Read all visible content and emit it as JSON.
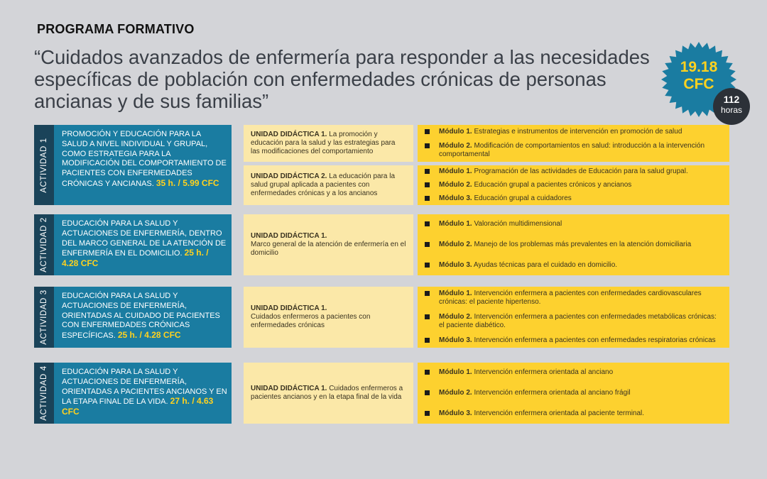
{
  "header": {
    "label": "PROGRAMA FORMATIVO",
    "title": "“Cuidados avanzados de enfermería para responder a las necesidades específicas de población con enfermedades crónicas de personas ancianas y de sus familias”"
  },
  "badge": {
    "cfc_value": "19.18",
    "cfc_label": "CFC",
    "hours_value": "112",
    "hours_label": "horas"
  },
  "colors": {
    "background": "#d3d4d8",
    "activity_blue": "#1a7ca1",
    "activity_tab": "#1a4359",
    "unit_yellow": "#fbe8a8",
    "module_yellow": "#fdd12f",
    "badge_blue": "#1a7ca1",
    "highlight": "#ffd21f"
  },
  "icons": {
    "bullet": "square-bullet-icon",
    "badge": "starburst-badge-icon"
  },
  "activities": [
    {
      "tab": "ACTIVIDAD 1",
      "text": "PROMOCIÓN Y EDUCACIÓN PARA LA SALUD A NIVEL INDIVIDUAL Y GRUPAL, COMO ESTRATEGIA PARA LA MODIFICACIÓN DEL COMPORTAMIENTO DE PACIENTES CON ENFERMEDADES CRÓNICAS Y ANCIANAS.",
      "hours": "35 h. / 5.99 CFC",
      "units": [
        {
          "title": "UNIDAD DIDÁCTICA 1.",
          "desc": "La promoción y educación para la salud y las estrategias para las modificaciones del comportamiento",
          "modules": [
            {
              "label": "Módulo 1.",
              "text": "Estrategias e instrumentos de intervención en promoción de salud"
            },
            {
              "label": "Módulo 2.",
              "text": "Modificación de comportamientos en salud: introducción a la intervención comportamental"
            }
          ]
        },
        {
          "title": "UNIDAD DIDÁCTICA 2.",
          "desc": "La educación para la salud grupal aplicada a pacientes con enfermedades crónicas y a los ancianos",
          "modules": [
            {
              "label": "Módulo 1.",
              "text": "Programación de las actividades de Educación para la salud grupal."
            },
            {
              "label": "Módulo 2.",
              "text": "Educación grupal a pacientes crónicos y ancianos"
            },
            {
              "label": "Módulo 3.",
              "text": "Educación grupal a cuidadores"
            }
          ]
        }
      ]
    },
    {
      "tab": "ACTIVIDAD 2",
      "text": "EDUCACIÓN PARA LA SALUD Y ACTUACIONES DE ENFERMERÍA, DENTRO DEL MARCO GENERAL DE LA ATENCIÓN DE ENFERMERÍA EN EL DOMICILIO.",
      "hours": "25 h. / 4.28 CFC",
      "units": [
        {
          "title": "UNIDAD DIDÁCTICA 1.",
          "desc": "Marco general de la atención de enfermería en el domicilio",
          "modules": [
            {
              "label": "Módulo 1.",
              "text": "Valoración multidimensional"
            },
            {
              "label": "Módulo 2.",
              "text": "Manejo de los problemas más prevalentes en la atención domiciliaria"
            },
            {
              "label": "Módulo 3.",
              "text": "Ayudas técnicas para el cuidado en domicilio."
            }
          ]
        }
      ]
    },
    {
      "tab": "ACTIVIDAD 3",
      "text": "EDUCACIÓN PARA LA SALUD Y ACTUACIONES DE ENFERMERÍA, ORIENTADAS AL CUIDADO DE PACIENTES CON ENFERMEDADES CRÓNICAS ESPECÍFICAS.",
      "hours": "25 h. / 4.28 CFC",
      "units": [
        {
          "title": "UNIDAD DIDÁCTICA 1.",
          "desc": "Cuidados enfermeros a pacientes con enfermedades crónicas",
          "modules": [
            {
              "label": "Módulo 1.",
              "text": "Intervención enfermera a pacientes con enfermedades cardiovasculares crónicas: el paciente hipertenso."
            },
            {
              "label": "Módulo 2.",
              "text": "Intervención enfermera a pacientes con enfermedades metabólicas crónicas: el paciente diabético."
            },
            {
              "label": "Módulo 3.",
              "text": "Intervención enfermera a  pacientes con enfermedades respiratorias crónicas"
            }
          ]
        }
      ]
    },
    {
      "tab": "ACTIVIDAD 4",
      "text": "EDUCACIÓN PARA LA SALUD Y ACTUACIONES DE ENFERMERÍA, ORIENTADAS A PACIENTES ANCIANOS Y EN LA ETAPA FINAL DE LA VIDA.",
      "hours": "27 h. / 4.63 CFC",
      "units": [
        {
          "title": "UNIDAD DIDÁCTICA 1.",
          "desc": "Cuidados enfermeros  a pacientes ancianos y en la etapa final de la vida",
          "modules": [
            {
              "label": "Módulo 1.",
              "text": "Intervención enfermera orientada al anciano"
            },
            {
              "label": "Módulo 2.",
              "text": "Intervención enfermera orientada al anciano frágil"
            },
            {
              "label": "Módulo 3.",
              "text": "Intervención enfermera orientada al paciente terminal."
            }
          ]
        }
      ]
    }
  ]
}
